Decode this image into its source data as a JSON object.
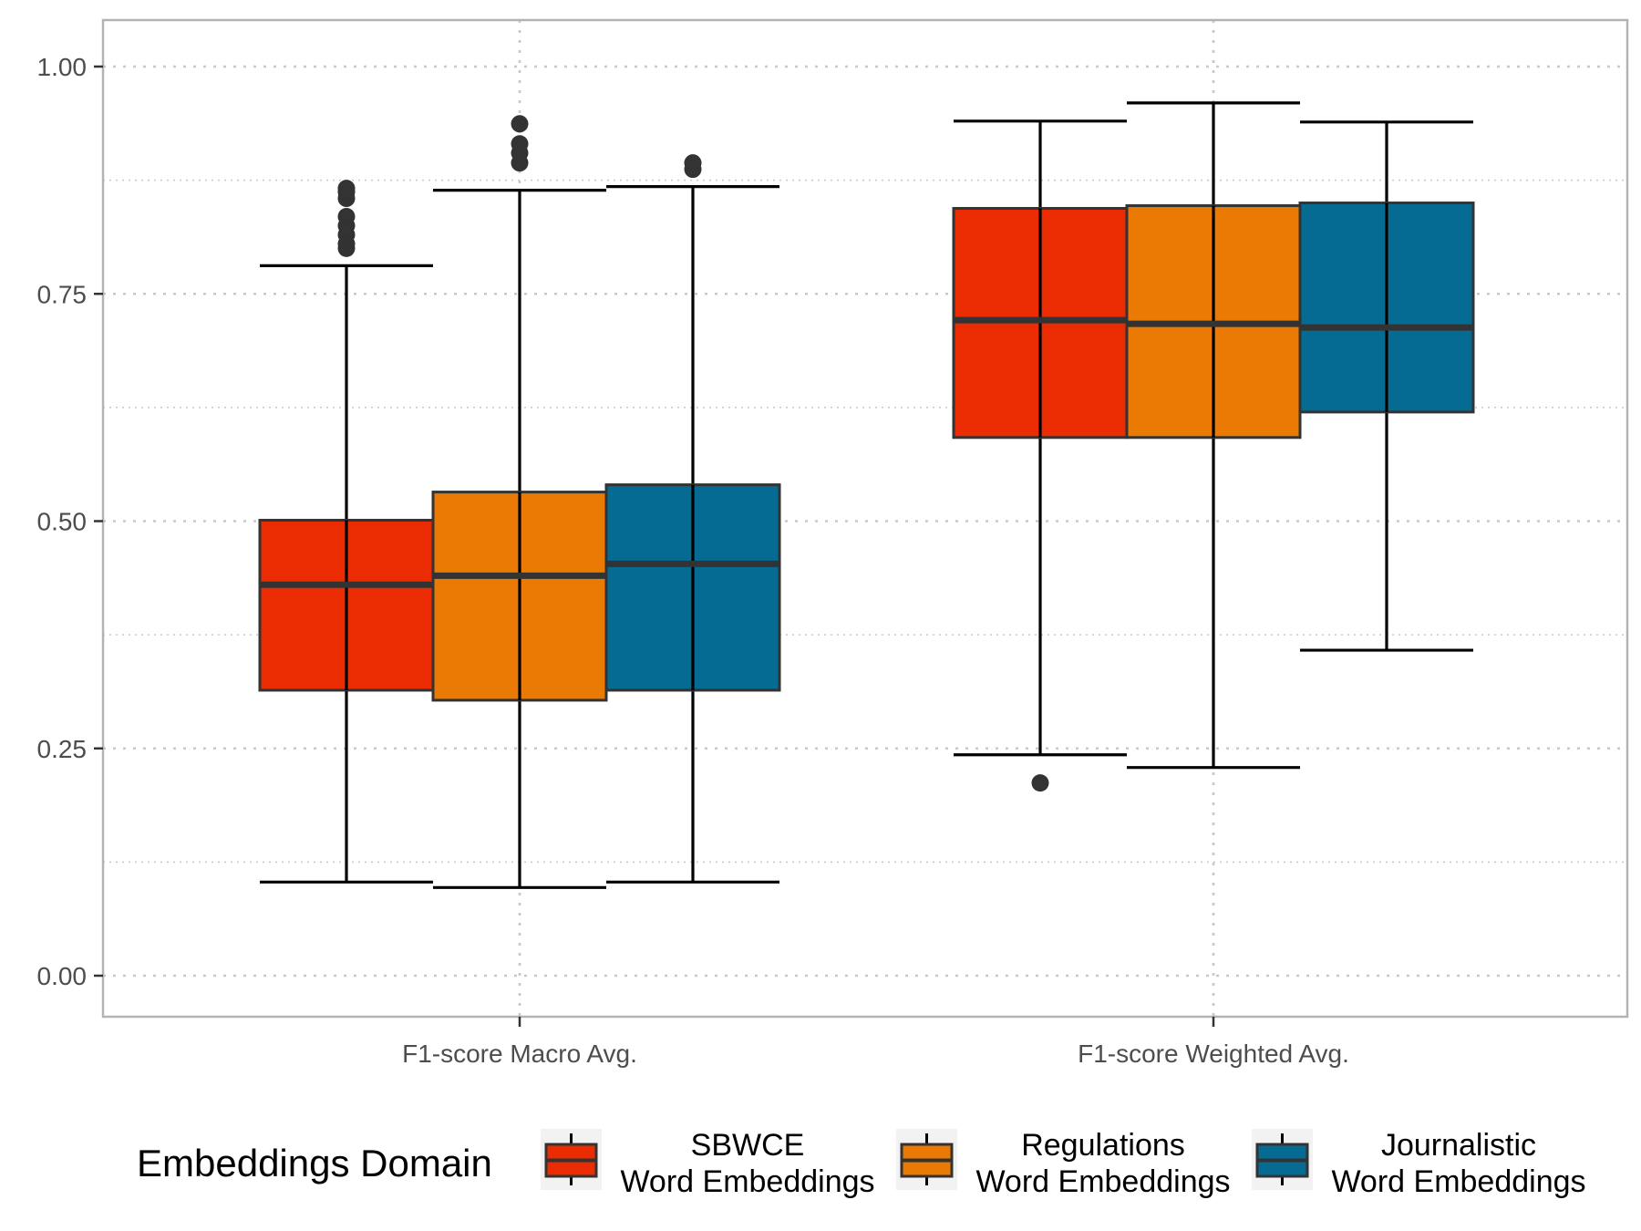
{
  "chart_data": {
    "type": "boxplot",
    "title": "",
    "xlabel": "",
    "ylabel": "",
    "ylim": [
      -0.05,
      1.05
    ],
    "yticks": [
      "0.00",
      "0.25",
      "0.50",
      "0.75",
      "1.00"
    ],
    "ytick_values": [
      0,
      0.25,
      0.5,
      0.75,
      1.0
    ],
    "minor_gridlines": [
      0.125,
      0.375,
      0.625,
      0.875
    ],
    "grid": true,
    "legend_position": "bottom",
    "legend_title": "Embeddings Domain",
    "categories": [
      "F1-score Macro Avg.",
      "F1-score Weighted Avg."
    ],
    "series": [
      {
        "name": "SBWCE\nWord Embeddings",
        "label_lines": [
          "SBWCE",
          "Word Embeddings"
        ],
        "color": "#EB2C02",
        "boxes": [
          {
            "category": "F1-score Macro Avg.",
            "whisker_low": 0.103,
            "q1": 0.314,
            "median": 0.43,
            "q3": 0.501,
            "whisker_high": 0.781,
            "outliers": [
              0.8,
              0.805,
              0.815,
              0.825,
              0.835,
              0.855,
              0.862,
              0.866
            ]
          },
          {
            "category": "F1-score Weighted Avg.",
            "whisker_low": 0.243,
            "q1": 0.592,
            "median": 0.721,
            "q3": 0.844,
            "whisker_high": 0.94,
            "outliers": [
              0.212
            ]
          }
        ]
      },
      {
        "name": "Regulations\nWord Embeddings",
        "label_lines": [
          "Regulations",
          "Word Embeddings"
        ],
        "color": "#EA7A03",
        "boxes": [
          {
            "category": "F1-score Macro Avg.",
            "whisker_low": 0.097,
            "q1": 0.303,
            "median": 0.44,
            "q3": 0.532,
            "whisker_high": 0.864,
            "outliers": [
              0.894,
              0.905,
              0.915,
              0.937
            ]
          },
          {
            "category": "F1-score Weighted Avg.",
            "whisker_low": 0.229,
            "q1": 0.592,
            "median": 0.717,
            "q3": 0.847,
            "whisker_high": 0.96,
            "outliers": []
          }
        ]
      },
      {
        "name": "Journalistic\nWord Embeddings",
        "label_lines": [
          "Journalistic",
          "Word Embeddings"
        ],
        "color": "#066B93",
        "boxes": [
          {
            "category": "F1-score Macro Avg.",
            "whisker_low": 0.103,
            "q1": 0.314,
            "median": 0.453,
            "q3": 0.54,
            "whisker_high": 0.868,
            "outliers": [
              0.887,
              0.894
            ]
          },
          {
            "category": "F1-score Weighted Avg.",
            "whisker_low": 0.358,
            "q1": 0.62,
            "median": 0.713,
            "q3": 0.85,
            "whisker_high": 0.939,
            "outliers": []
          }
        ]
      }
    ]
  }
}
